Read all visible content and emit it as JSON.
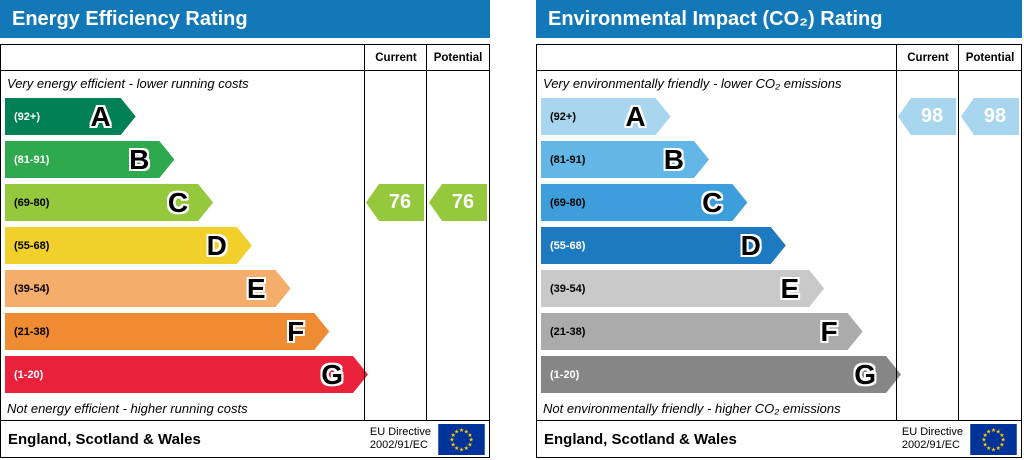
{
  "chart_data": [
    {
      "type": "bar",
      "title": "Energy Efficiency Rating",
      "accent_color": "#1278b8",
      "columns": {
        "current": "Current",
        "potential": "Potential"
      },
      "top_caption": "Very energy efficient - lower running costs",
      "bottom_caption": "Not energy efficient - higher running costs",
      "bands": [
        {
          "letter": "A",
          "range": "(92+)",
          "color": "#008054",
          "label_color": "#ffffff",
          "width": "27%"
        },
        {
          "letter": "B",
          "range": "(81-91)",
          "color": "#2ea94e",
          "label_color": "#ffffff",
          "width": "35%"
        },
        {
          "letter": "C",
          "range": "(69-80)",
          "color": "#95c83d",
          "label_color": "#000000",
          "width": "43%"
        },
        {
          "letter": "D",
          "range": "(55-68)",
          "color": "#f2d02c",
          "label_color": "#000000",
          "width": "51%"
        },
        {
          "letter": "E",
          "range": "(39-54)",
          "color": "#f5ad6b",
          "label_color": "#000000",
          "width": "59%"
        },
        {
          "letter": "F",
          "range": "(21-38)",
          "color": "#ee8b33",
          "label_color": "#000000",
          "width": "67%"
        },
        {
          "letter": "G",
          "range": "(1-20)",
          "color": "#e9213a",
          "label_color": "#ffffff",
          "width": "75%"
        }
      ],
      "current": {
        "value": 76,
        "band": "C",
        "band_index": 2,
        "color": "#95c83d"
      },
      "potential": {
        "value": 76,
        "band": "C",
        "band_index": 2,
        "color": "#95c83d"
      },
      "footer": {
        "region": "England, Scotland & Wales",
        "directive_line1": "EU Directive",
        "directive_line2": "2002/91/EC"
      }
    },
    {
      "type": "bar",
      "title": "Environmental Impact (CO₂) Rating",
      "accent_color": "#1278b8",
      "columns": {
        "current": "Current",
        "potential": "Potential"
      },
      "top_caption": "Very environmentally friendly - lower CO₂ emissions",
      "bottom_caption": "Not environmentally friendly - higher CO₂ emissions",
      "bands": [
        {
          "letter": "A",
          "range": "(92+)",
          "color": "#a7d6ee",
          "label_color": "#000000",
          "width": "27%"
        },
        {
          "letter": "B",
          "range": "(81-91)",
          "color": "#63b7e6",
          "label_color": "#000000",
          "width": "35%"
        },
        {
          "letter": "C",
          "range": "(69-80)",
          "color": "#3d9edb",
          "label_color": "#000000",
          "width": "43%"
        },
        {
          "letter": "D",
          "range": "(55-68)",
          "color": "#1e7ac0",
          "label_color": "#ffffff",
          "width": "51%"
        },
        {
          "letter": "E",
          "range": "(39-54)",
          "color": "#c9c9c9",
          "label_color": "#000000",
          "width": "59%"
        },
        {
          "letter": "F",
          "range": "(21-38)",
          "color": "#ababab",
          "label_color": "#000000",
          "width": "67%"
        },
        {
          "letter": "G",
          "range": "(1-20)",
          "color": "#868686",
          "label_color": "#ffffff",
          "width": "75%"
        }
      ],
      "current": {
        "value": 98,
        "band": "A",
        "band_index": 0,
        "color": "#a7d6ee"
      },
      "potential": {
        "value": 98,
        "band": "A",
        "band_index": 0,
        "color": "#a7d6ee"
      },
      "footer": {
        "region": "England, Scotland & Wales",
        "directive_line1": "EU Directive",
        "directive_line2": "2002/91/EC"
      }
    }
  ]
}
